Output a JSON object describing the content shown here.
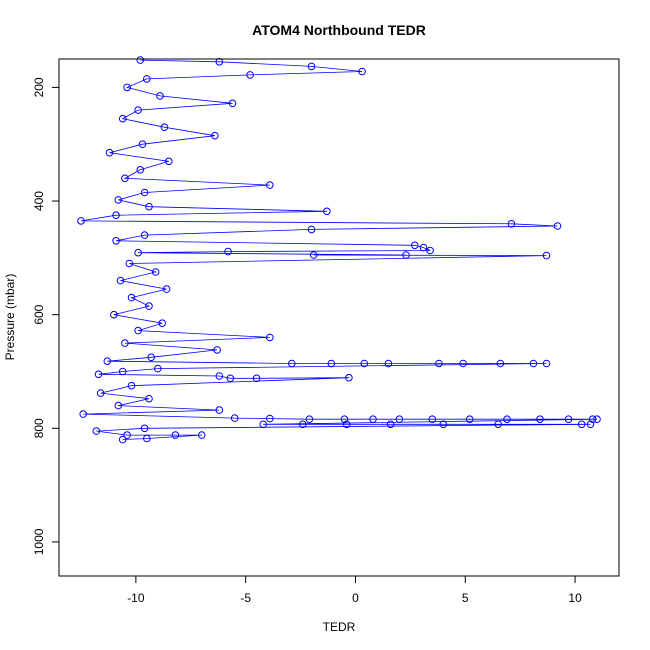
{
  "chart_data": {
    "type": "scatter",
    "title": "ATOM4 Northbound TEDR",
    "xlabel": "TEDR",
    "ylabel": "Pressure (mbar)",
    "xlim": [
      -13.5,
      12
    ],
    "ylim": [
      1060,
      150
    ],
    "y_reversed": true,
    "x_ticks": [
      -10,
      -5,
      0,
      5,
      10
    ],
    "y_ticks": [
      200,
      400,
      600,
      800,
      1000
    ],
    "x_tick_labels": [
      "-10",
      "-5",
      "0",
      "5",
      "10"
    ],
    "y_tick_labels": [
      "200",
      "400",
      "600",
      "800",
      "1000"
    ],
    "grid": false,
    "legend": "none",
    "marker": "open-circle",
    "lines_connect_points": true,
    "color": "#0000ff",
    "series": [
      {
        "points": [
          [
            -9.8,
            152
          ],
          [
            -6.2,
            155
          ],
          [
            -2.0,
            163
          ],
          [
            0.3,
            172
          ],
          [
            -4.8,
            178
          ],
          [
            -9.5,
            185
          ],
          [
            -10.4,
            200
          ],
          [
            -8.9,
            215
          ],
          [
            -5.6,
            228
          ],
          [
            -9.9,
            240
          ],
          [
            -10.6,
            255
          ],
          [
            -8.7,
            270
          ],
          [
            -6.4,
            285
          ],
          [
            -9.7,
            300
          ],
          [
            -11.2,
            315
          ],
          [
            -8.5,
            330
          ],
          [
            -9.8,
            345
          ],
          [
            -10.5,
            360
          ],
          [
            -3.9,
            372
          ],
          [
            -9.6,
            385
          ],
          [
            -10.8,
            398
          ],
          [
            -9.4,
            410
          ],
          [
            -1.3,
            418
          ],
          [
            -10.9,
            425
          ],
          [
            -12.5,
            435
          ],
          [
            7.1,
            440
          ],
          [
            9.2,
            444
          ],
          [
            -2.0,
            450
          ],
          [
            -9.6,
            460
          ],
          [
            -10.9,
            470
          ],
          [
            2.7,
            478
          ],
          [
            3.1,
            482
          ],
          [
            3.4,
            487
          ],
          [
            -5.8,
            489
          ],
          [
            -9.9,
            491
          ],
          [
            2.3,
            495
          ],
          [
            -1.9,
            495
          ],
          [
            8.7,
            496
          ],
          [
            -10.3,
            510
          ],
          [
            -9.1,
            525
          ],
          [
            -10.7,
            540
          ],
          [
            -8.6,
            555
          ],
          [
            -10.2,
            570
          ],
          [
            -9.4,
            585
          ],
          [
            -11.0,
            600
          ],
          [
            -8.8,
            615
          ],
          [
            -9.9,
            628
          ],
          [
            -3.9,
            640
          ],
          [
            -10.5,
            650
          ],
          [
            -6.3,
            662
          ],
          [
            -9.3,
            675
          ],
          [
            -11.3,
            682
          ],
          [
            -2.9,
            686
          ],
          [
            -1.1,
            686
          ],
          [
            0.4,
            686
          ],
          [
            1.5,
            686
          ],
          [
            3.8,
            686
          ],
          [
            4.9,
            686
          ],
          [
            6.6,
            686
          ],
          [
            8.1,
            686
          ],
          [
            8.7,
            686
          ],
          [
            -9.0,
            695
          ],
          [
            -10.6,
            700
          ],
          [
            -11.7,
            705
          ],
          [
            -6.2,
            708
          ],
          [
            -5.7,
            712
          ],
          [
            -4.5,
            712
          ],
          [
            -0.3,
            711
          ],
          [
            -10.2,
            725
          ],
          [
            -11.6,
            738
          ],
          [
            -9.4,
            748
          ],
          [
            -10.8,
            760
          ],
          [
            -6.2,
            768
          ],
          [
            -12.4,
            775
          ],
          [
            -5.5,
            782
          ],
          [
            -3.9,
            783
          ],
          [
            -2.1,
            784
          ],
          [
            -0.5,
            784
          ],
          [
            0.8,
            784
          ],
          [
            2.0,
            784
          ],
          [
            3.5,
            784
          ],
          [
            5.2,
            784
          ],
          [
            6.9,
            784
          ],
          [
            8.4,
            784
          ],
          [
            9.7,
            784
          ],
          [
            10.8,
            784
          ],
          [
            11.0,
            784
          ],
          [
            -4.2,
            793
          ],
          [
            -2.4,
            793
          ],
          [
            -0.4,
            793
          ],
          [
            1.6,
            793
          ],
          [
            4.0,
            793
          ],
          [
            6.5,
            793
          ],
          [
            10.3,
            793
          ],
          [
            10.7,
            793
          ],
          [
            -9.6,
            800
          ],
          [
            -11.8,
            805
          ],
          [
            -10.4,
            812
          ],
          [
            -8.2,
            812
          ],
          [
            -7.0,
            812
          ],
          [
            -9.5,
            818
          ],
          [
            -10.6,
            820
          ]
        ]
      }
    ]
  }
}
